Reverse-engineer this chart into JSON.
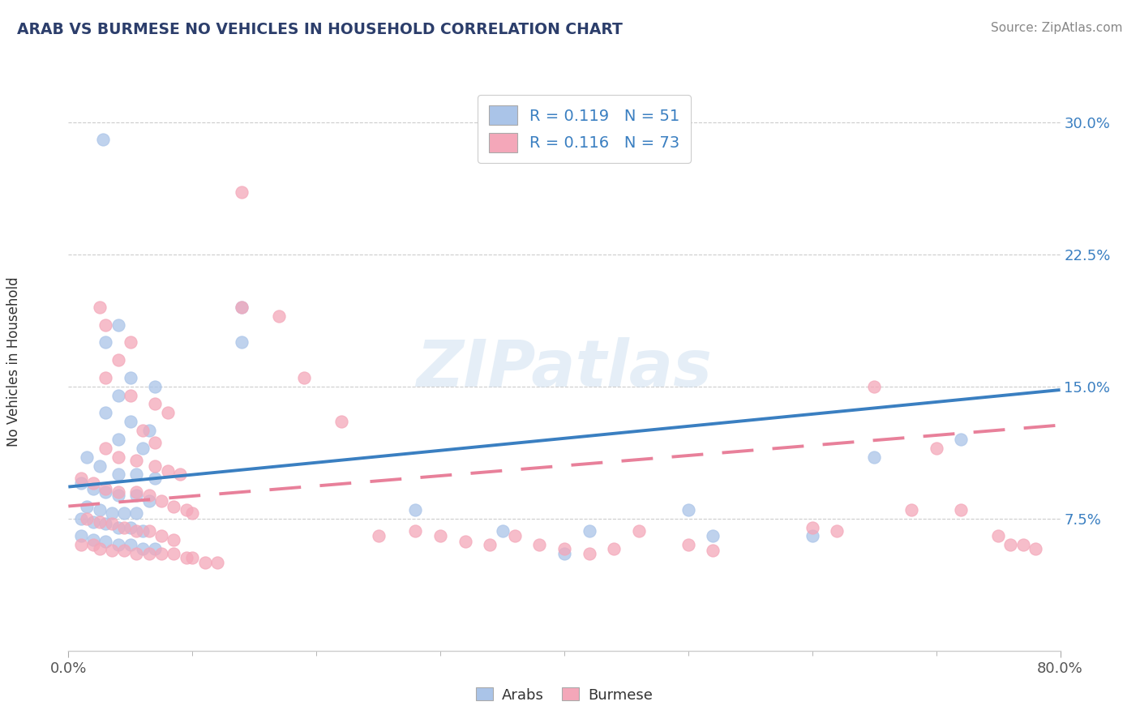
{
  "title": "ARAB VS BURMESE NO VEHICLES IN HOUSEHOLD CORRELATION CHART",
  "source": "Source: ZipAtlas.com",
  "ylabel": "No Vehicles in Household",
  "xlim": [
    0.0,
    0.8
  ],
  "ylim": [
    0.0,
    0.32
  ],
  "yticks": [
    0.075,
    0.15,
    0.225,
    0.3
  ],
  "yticklabels": [
    "7.5%",
    "15.0%",
    "22.5%",
    "30.0%"
  ],
  "arab_color": "#aac4e8",
  "burmese_color": "#f4a7b9",
  "arab_line_color": "#3a7fc1",
  "burmese_line_color": "#e8809a",
  "arab_R": 0.119,
  "arab_N": 51,
  "burmese_R": 0.116,
  "burmese_N": 73,
  "watermark": "ZIPatlas",
  "title_color": "#2c3e6b",
  "source_color": "#888888",
  "tick_color_y": "#3a7fc1",
  "tick_color_x": "#555555",
  "legend_text_color": "#3a7fc1",
  "ylabel_color": "#333333",
  "arab_scatter": [
    [
      0.028,
      0.29
    ],
    [
      0.14,
      0.195
    ],
    [
      0.14,
      0.175
    ],
    [
      0.04,
      0.185
    ],
    [
      0.03,
      0.175
    ],
    [
      0.05,
      0.155
    ],
    [
      0.07,
      0.15
    ],
    [
      0.04,
      0.145
    ],
    [
      0.03,
      0.135
    ],
    [
      0.05,
      0.13
    ],
    [
      0.065,
      0.125
    ],
    [
      0.04,
      0.12
    ],
    [
      0.06,
      0.115
    ],
    [
      0.015,
      0.11
    ],
    [
      0.025,
      0.105
    ],
    [
      0.04,
      0.1
    ],
    [
      0.055,
      0.1
    ],
    [
      0.07,
      0.098
    ],
    [
      0.01,
      0.095
    ],
    [
      0.02,
      0.092
    ],
    [
      0.03,
      0.09
    ],
    [
      0.04,
      0.088
    ],
    [
      0.055,
      0.088
    ],
    [
      0.065,
      0.085
    ],
    [
      0.015,
      0.082
    ],
    [
      0.025,
      0.08
    ],
    [
      0.035,
      0.078
    ],
    [
      0.045,
      0.078
    ],
    [
      0.055,
      0.078
    ],
    [
      0.01,
      0.075
    ],
    [
      0.02,
      0.073
    ],
    [
      0.03,
      0.072
    ],
    [
      0.04,
      0.07
    ],
    [
      0.05,
      0.07
    ],
    [
      0.06,
      0.068
    ],
    [
      0.01,
      0.065
    ],
    [
      0.02,
      0.063
    ],
    [
      0.03,
      0.062
    ],
    [
      0.04,
      0.06
    ],
    [
      0.05,
      0.06
    ],
    [
      0.06,
      0.058
    ],
    [
      0.07,
      0.058
    ],
    [
      0.28,
      0.08
    ],
    [
      0.35,
      0.068
    ],
    [
      0.4,
      0.055
    ],
    [
      0.42,
      0.068
    ],
    [
      0.5,
      0.08
    ],
    [
      0.52,
      0.065
    ],
    [
      0.6,
      0.065
    ],
    [
      0.65,
      0.11
    ],
    [
      0.72,
      0.12
    ]
  ],
  "burmese_scatter": [
    [
      0.14,
      0.26
    ],
    [
      0.025,
      0.195
    ],
    [
      0.14,
      0.195
    ],
    [
      0.17,
      0.19
    ],
    [
      0.03,
      0.185
    ],
    [
      0.05,
      0.175
    ],
    [
      0.04,
      0.165
    ],
    [
      0.03,
      0.155
    ],
    [
      0.19,
      0.155
    ],
    [
      0.05,
      0.145
    ],
    [
      0.07,
      0.14
    ],
    [
      0.08,
      0.135
    ],
    [
      0.22,
      0.13
    ],
    [
      0.06,
      0.125
    ],
    [
      0.07,
      0.118
    ],
    [
      0.03,
      0.115
    ],
    [
      0.04,
      0.11
    ],
    [
      0.055,
      0.108
    ],
    [
      0.07,
      0.105
    ],
    [
      0.08,
      0.102
    ],
    [
      0.09,
      0.1
    ],
    [
      0.01,
      0.098
    ],
    [
      0.02,
      0.095
    ],
    [
      0.03,
      0.092
    ],
    [
      0.04,
      0.09
    ],
    [
      0.055,
      0.09
    ],
    [
      0.065,
      0.088
    ],
    [
      0.075,
      0.085
    ],
    [
      0.085,
      0.082
    ],
    [
      0.095,
      0.08
    ],
    [
      0.1,
      0.078
    ],
    [
      0.015,
      0.075
    ],
    [
      0.025,
      0.073
    ],
    [
      0.035,
      0.072
    ],
    [
      0.045,
      0.07
    ],
    [
      0.055,
      0.068
    ],
    [
      0.065,
      0.068
    ],
    [
      0.075,
      0.065
    ],
    [
      0.085,
      0.063
    ],
    [
      0.01,
      0.06
    ],
    [
      0.02,
      0.06
    ],
    [
      0.025,
      0.058
    ],
    [
      0.035,
      0.057
    ],
    [
      0.045,
      0.057
    ],
    [
      0.055,
      0.055
    ],
    [
      0.065,
      0.055
    ],
    [
      0.075,
      0.055
    ],
    [
      0.085,
      0.055
    ],
    [
      0.095,
      0.053
    ],
    [
      0.1,
      0.053
    ],
    [
      0.11,
      0.05
    ],
    [
      0.12,
      0.05
    ],
    [
      0.25,
      0.065
    ],
    [
      0.28,
      0.068
    ],
    [
      0.3,
      0.065
    ],
    [
      0.32,
      0.062
    ],
    [
      0.34,
      0.06
    ],
    [
      0.36,
      0.065
    ],
    [
      0.38,
      0.06
    ],
    [
      0.4,
      0.058
    ],
    [
      0.42,
      0.055
    ],
    [
      0.44,
      0.058
    ],
    [
      0.46,
      0.068
    ],
    [
      0.5,
      0.06
    ],
    [
      0.52,
      0.057
    ],
    [
      0.6,
      0.07
    ],
    [
      0.62,
      0.068
    ],
    [
      0.65,
      0.15
    ],
    [
      0.68,
      0.08
    ],
    [
      0.7,
      0.115
    ],
    [
      0.72,
      0.08
    ],
    [
      0.75,
      0.065
    ],
    [
      0.76,
      0.06
    ],
    [
      0.77,
      0.06
    ],
    [
      0.78,
      0.058
    ]
  ]
}
